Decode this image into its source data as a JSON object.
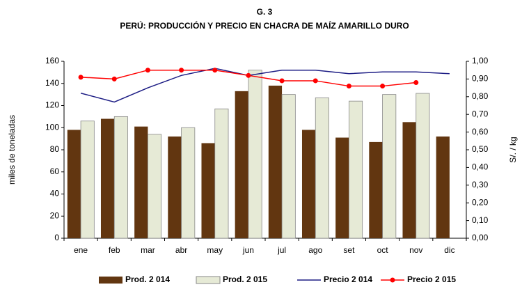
{
  "chart_data": {
    "type": "bar-line",
    "title": "G. 3",
    "subtitle": "PERÚ: PRODUCCIÓN Y PRECIO EN CHACRA DE MAÍZ AMARILLO DURO",
    "y_label": "miles de toneladas",
    "y2_label": "S/. / kg",
    "categories": [
      "ene",
      "feb",
      "mar",
      "abr",
      "may",
      "jun",
      "jul",
      "ago",
      "set",
      "oct",
      "nov",
      "dic"
    ],
    "series": [
      {
        "name": "Prod. 2 014",
        "type": "bar",
        "color": "#623610",
        "values": [
          98,
          108,
          101,
          92,
          86,
          133,
          138,
          98,
          91,
          87,
          105,
          92
        ]
      },
      {
        "name": "Prod. 2 015",
        "type": "bar",
        "color": "#e6ead6",
        "values": [
          106,
          110,
          94,
          100,
          117,
          152,
          130,
          127,
          124,
          130,
          131,
          null
        ]
      },
      {
        "name": "Precio 2 014",
        "type": "line",
        "axis": "y2",
        "color": "#1c1c84",
        "values": [
          0.82,
          0.77,
          0.85,
          0.92,
          0.96,
          0.92,
          0.95,
          0.95,
          0.93,
          0.94,
          0.94,
          0.93
        ]
      },
      {
        "name": "Precio 2 015",
        "type": "line",
        "axis": "y2",
        "color": "#ff0000",
        "marker": true,
        "values": [
          0.91,
          0.9,
          0.95,
          0.95,
          0.95,
          0.92,
          0.89,
          0.89,
          0.86,
          0.86,
          0.88,
          null
        ]
      }
    ],
    "ylim": [
      0,
      160
    ],
    "yticks": [
      0,
      20,
      40,
      60,
      80,
      100,
      120,
      140,
      160
    ],
    "y2lim": [
      0,
      1
    ],
    "y2ticks": [
      {
        "value": 0,
        "label": "0,00"
      },
      {
        "value": 0.1,
        "label": "0,10"
      },
      {
        "value": 0.2,
        "label": "0,20"
      },
      {
        "value": 0.3,
        "label": "0,30"
      },
      {
        "value": 0.4,
        "label": "0,40"
      },
      {
        "value": 0.5,
        "label": "0,50"
      },
      {
        "value": 0.6,
        "label": "0,60"
      },
      {
        "value": 0.7,
        "label": "0,70"
      },
      {
        "value": 0.8,
        "label": "0,80"
      },
      {
        "value": 0.9,
        "label": "0,90"
      },
      {
        "value": 1,
        "label": "1,00"
      }
    ],
    "legend": "bottom",
    "grid": false
  }
}
